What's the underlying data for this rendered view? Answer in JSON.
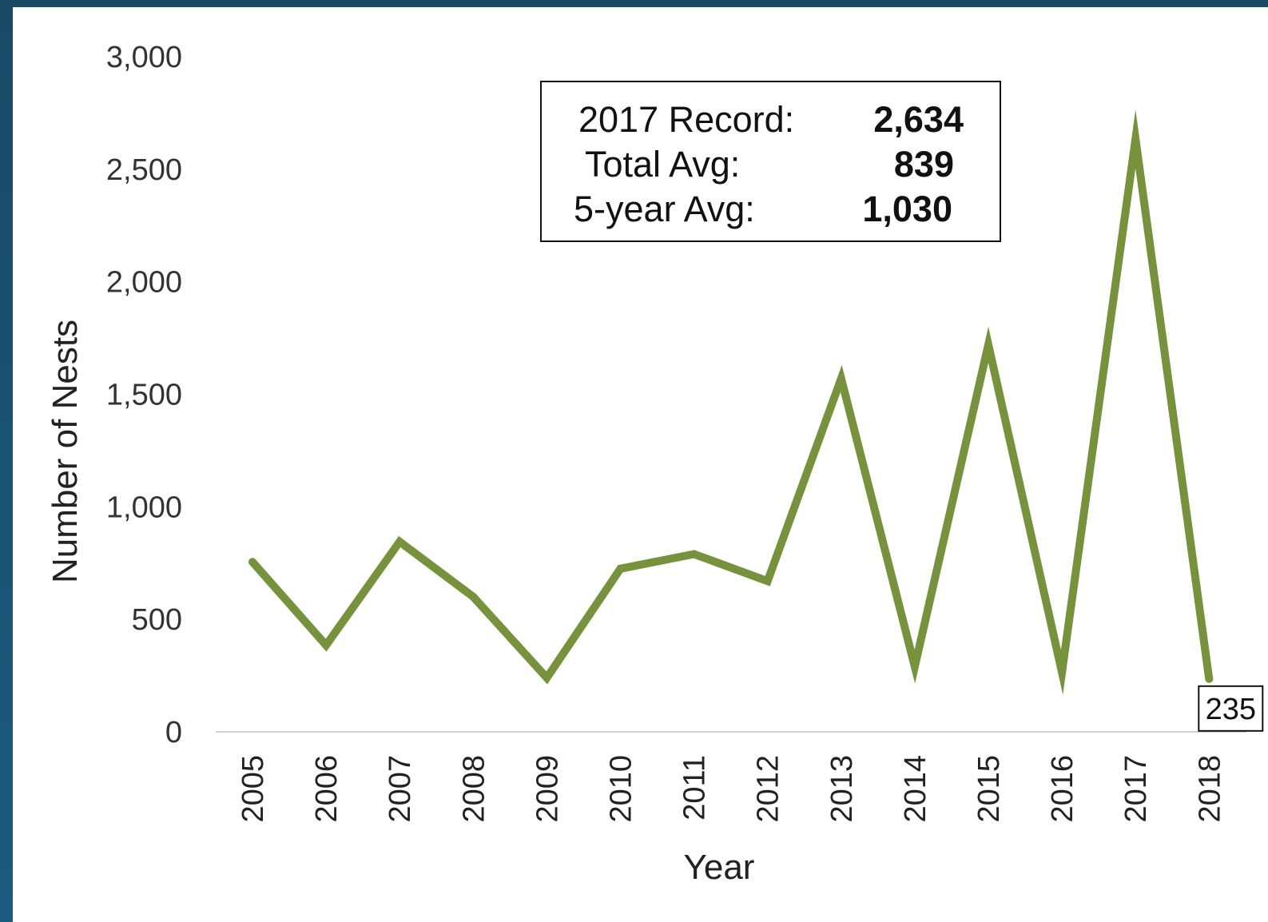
{
  "colors": {
    "line": "#76923c",
    "axis": "#d0d0d0",
    "frame": "#1b5273"
  },
  "stats_box": {
    "rows": [
      {
        "label": "2017 Record:",
        "value": "2,634"
      },
      {
        "label": "Total Avg:",
        "value": "839"
      },
      {
        "label": "5-year Avg:",
        "value": "1,030"
      }
    ]
  },
  "chart_data": {
    "type": "line",
    "xlabel": "Year",
    "ylabel": "Number of Nests",
    "ylim": [
      0,
      3000
    ],
    "yticks": [
      0,
      500,
      1000,
      1500,
      2000,
      2500,
      3000
    ],
    "ytick_labels": [
      "0",
      "500",
      "1,000",
      "1,500",
      "2,000",
      "2,500",
      "3,000"
    ],
    "grid": false,
    "categories": [
      "2005",
      "2006",
      "2007",
      "2008",
      "2009",
      "2010",
      "2011",
      "2012",
      "2013",
      "2014",
      "2015",
      "2016",
      "2017",
      "2018"
    ],
    "series": [
      {
        "values": [
          755,
          385,
          845,
          600,
          240,
          725,
          790,
          670,
          1570,
          290,
          1720,
          265,
          2634,
          235
        ]
      }
    ],
    "data_labels": [
      {
        "index": 13,
        "text": "235"
      }
    ]
  }
}
